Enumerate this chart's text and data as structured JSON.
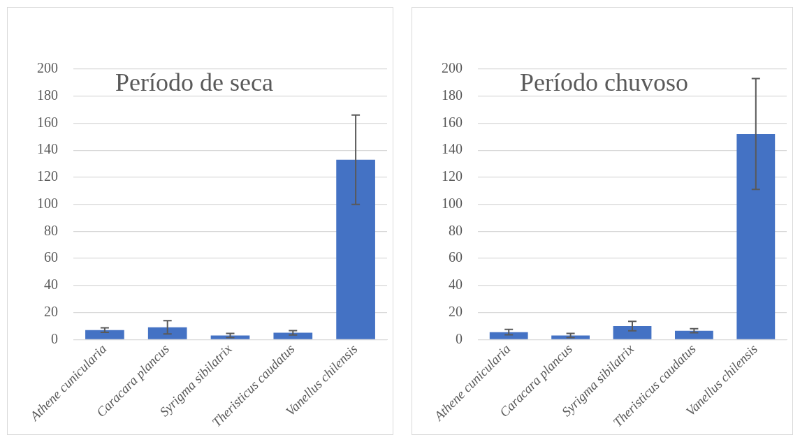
{
  "chart_data": [
    {
      "type": "bar",
      "title": "Período de seca",
      "categories": [
        "Athene cunicularia",
        "Caracara plancus",
        "Syrigma sibilatrix",
        "Theristicus caudatus",
        "Vanellus chilensis"
      ],
      "values": [
        7,
        9,
        3,
        5,
        133
      ],
      "errors": [
        1.7,
        4.9,
        1.6,
        1.6,
        33
      ],
      "color": "#4472c4",
      "ylim": [
        0,
        200
      ],
      "yticks": [
        0,
        20,
        40,
        60,
        80,
        100,
        120,
        140,
        160,
        180,
        200
      ],
      "grid": "y"
    },
    {
      "type": "bar",
      "title": "Período chuvoso",
      "categories": [
        "Athene cunicularia",
        "Caracara plancus",
        "Syrigma sibilatrix",
        "Theristicus caudatus",
        "Vanellus chilensis"
      ],
      "values": [
        5.5,
        3,
        10,
        6.5,
        152
      ],
      "errors": [
        2,
        1.5,
        3.5,
        1.5,
        41
      ],
      "color": "#4472c4",
      "ylim": [
        0,
        200
      ],
      "yticks": [
        0,
        20,
        40,
        60,
        80,
        100,
        120,
        140,
        160,
        180,
        200
      ],
      "grid": "y"
    }
  ]
}
